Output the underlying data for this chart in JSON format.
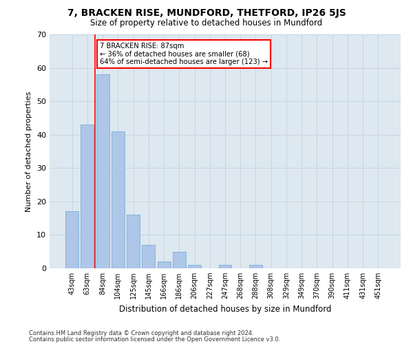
{
  "title": "7, BRACKEN RISE, MUNDFORD, THETFORD, IP26 5JS",
  "subtitle": "Size of property relative to detached houses in Mundford",
  "xlabel": "Distribution of detached houses by size in Mundford",
  "ylabel": "Number of detached properties",
  "bar_categories": [
    "43sqm",
    "63sqm",
    "84sqm",
    "104sqm",
    "125sqm",
    "145sqm",
    "166sqm",
    "186sqm",
    "206sqm",
    "227sqm",
    "247sqm",
    "268sqm",
    "288sqm",
    "308sqm",
    "329sqm",
    "349sqm",
    "370sqm",
    "390sqm",
    "411sqm",
    "431sqm",
    "451sqm"
  ],
  "bar_values": [
    17,
    43,
    58,
    41,
    16,
    7,
    2,
    5,
    1,
    0,
    1,
    0,
    1,
    0,
    0,
    0,
    0,
    0,
    0,
    0,
    0
  ],
  "bar_color": "#aec6e8",
  "bar_edge_color": "#7aafd4",
  "annotation_text": "7 BRACKEN RISE: 87sqm\n← 36% of detached houses are smaller (68)\n64% of semi-detached houses are larger (123) →",
  "annotation_box_color": "white",
  "annotation_box_edge_color": "red",
  "vline_color": "red",
  "ylim": [
    0,
    70
  ],
  "yticks": [
    0,
    10,
    20,
    30,
    40,
    50,
    60,
    70
  ],
  "grid_color": "#c8d4e0",
  "bg_color": "#dde8f0",
  "footnote1": "Contains HM Land Registry data © Crown copyright and database right 2024.",
  "footnote2": "Contains public sector information licensed under the Open Government Licence v3.0."
}
